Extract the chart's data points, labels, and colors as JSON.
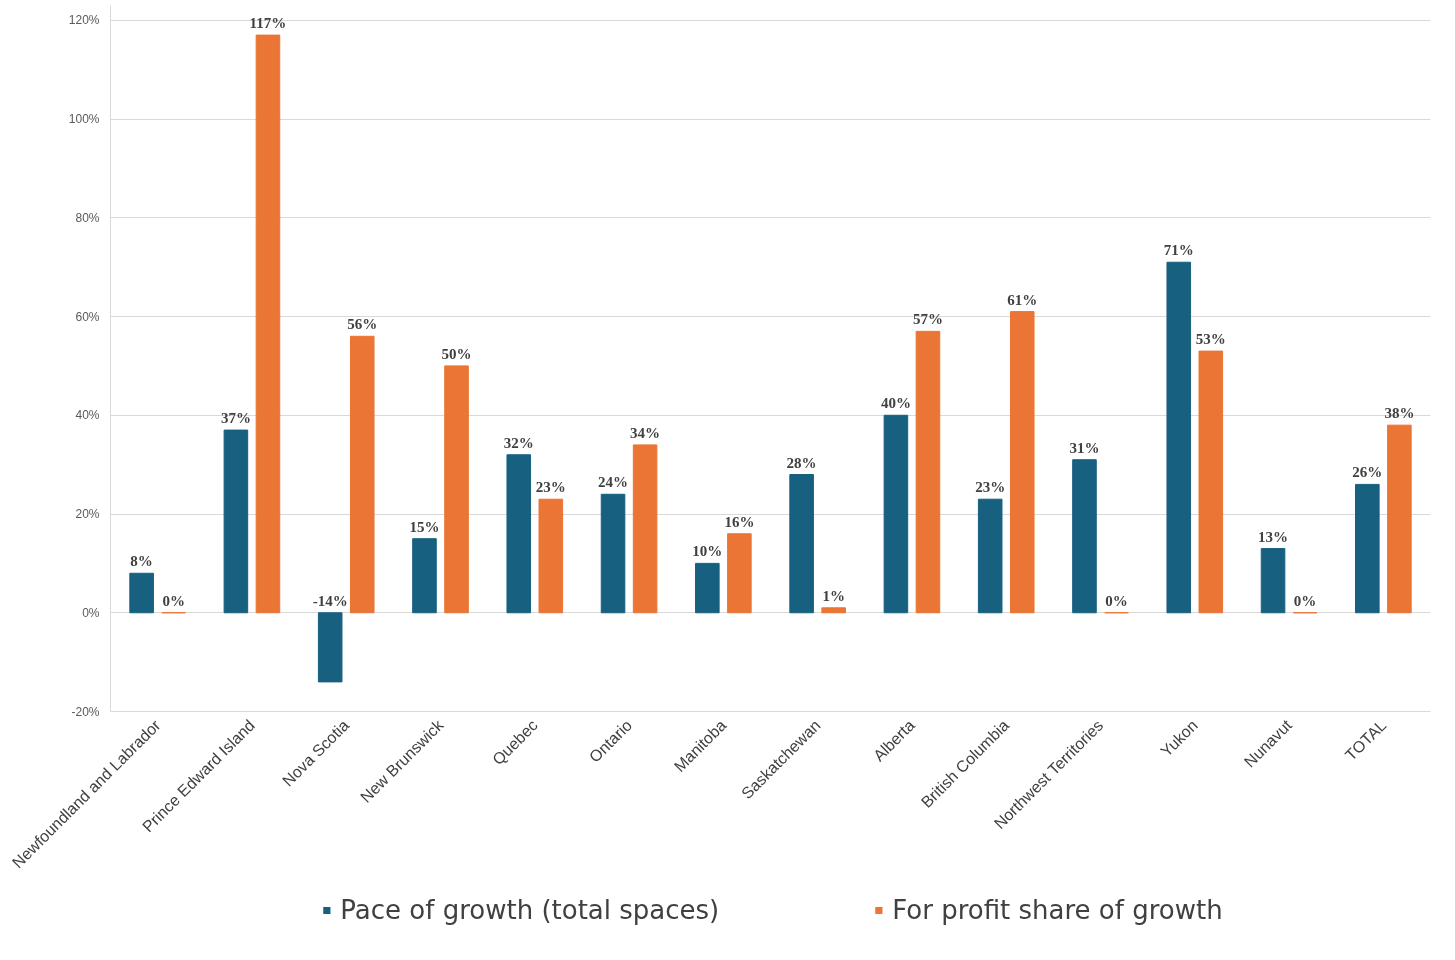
{
  "chart_data": {
    "type": "bar",
    "categories": [
      "Newfoundland and Labrador",
      "Prince Edward Island",
      "Nova Scotia",
      "New Brunswick",
      "Quebec",
      "Ontario",
      "Manitoba",
      "Saskatchewan",
      "Alberta",
      "British Columbia",
      "Northwest Territories",
      "Yukon",
      "Nunavut",
      "TOTAL"
    ],
    "series": [
      {
        "name": "Pace of growth (total spaces)",
        "color": "#17607f",
        "values": [
          8,
          37,
          -14,
          15,
          32,
          24,
          10,
          28,
          40,
          23,
          31,
          71,
          13,
          26
        ],
        "value_labels": [
          "8%",
          "37%",
          "-14%",
          "15%",
          "32%",
          "24%",
          "10%",
          "28%",
          "40%",
          "23%",
          "31%",
          "71%",
          "13%",
          "26%"
        ]
      },
      {
        "name": "For profit share of growth",
        "color": "#ea7534",
        "values": [
          0,
          117,
          56,
          50,
          23,
          34,
          16,
          1,
          57,
          61,
          0,
          53,
          0,
          38
        ],
        "value_labels": [
          "0%",
          "117%",
          "56%",
          "50%",
          "23%",
          "34%",
          "16%",
          "1%",
          "57%",
          "61%",
          "0%",
          "53%",
          "0%",
          "38%"
        ]
      }
    ],
    "ylim": [
      -20,
      123
    ],
    "yticks": [
      {
        "value": -20,
        "label": "-20%"
      },
      {
        "value": 0,
        "label": "0%"
      },
      {
        "value": 20,
        "label": "20%"
      },
      {
        "value": 40,
        "label": "40%"
      },
      {
        "value": 60,
        "label": "60%"
      },
      {
        "value": 80,
        "label": "80%"
      },
      {
        "value": 100,
        "label": "100%"
      },
      {
        "value": 120,
        "label": "120%"
      }
    ],
    "grid": "y",
    "legend": "bottom"
  }
}
